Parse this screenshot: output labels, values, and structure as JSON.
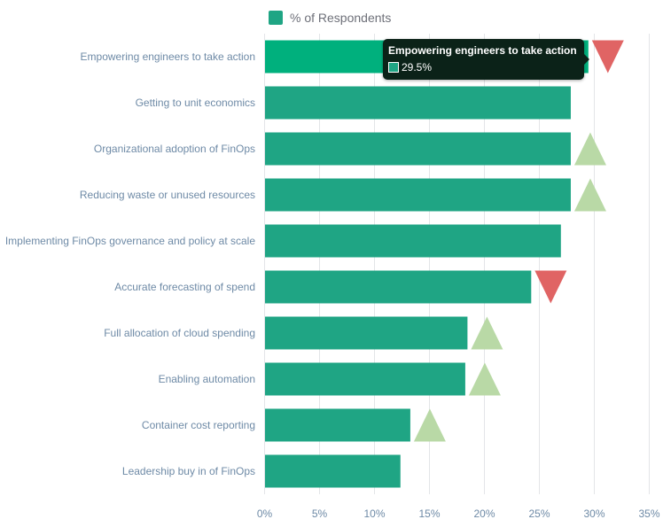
{
  "legend": {
    "label": "% of Respondents"
  },
  "tooltip": {
    "title": "Empowering engineers to take action",
    "value": "29.5%"
  },
  "colors": {
    "bar": "#1fa584",
    "bar_highlight": "#00b07d",
    "trend_up": "#b9d9a6",
    "trend_down": "#e06464",
    "grid": "#e3e5e8",
    "axis_text": "#6e8aa6"
  },
  "chart_data": {
    "type": "bar",
    "orientation": "horizontal",
    "categories": [
      "Empowering engineers to take action",
      "Getting to unit economics",
      "Organizational adoption of FinOps",
      "Reducing waste or unused resources",
      "Implementing FinOps governance and policy at scale",
      "Accurate forecasting of spend",
      "Full allocation of cloud spending",
      "Enabling automation",
      "Container cost reporting",
      "Leadership buy in of FinOps"
    ],
    "series": [
      {
        "name": "% of Respondents",
        "values": [
          29.5,
          27.9,
          27.9,
          27.9,
          27.0,
          24.3,
          18.5,
          18.3,
          13.3,
          12.4
        ]
      }
    ],
    "trends": [
      "down",
      "none",
      "up",
      "up",
      "none",
      "down",
      "up",
      "up",
      "up",
      "none"
    ],
    "highlighted": "Empowering engineers to take action",
    "xlim": [
      0,
      35
    ],
    "xticks": [
      "0%",
      "5%",
      "10%",
      "15%",
      "20%",
      "25%",
      "30%",
      "35%"
    ],
    "grid": true,
    "legend_position": "top-center"
  }
}
